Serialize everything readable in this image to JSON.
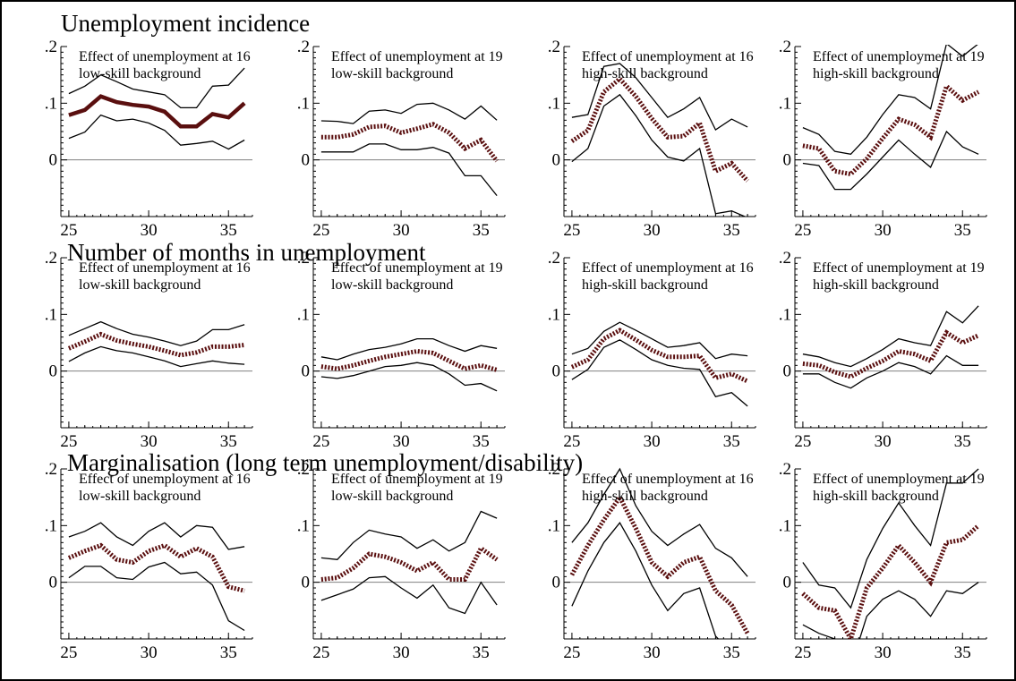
{
  "chart_data": {
    "type": "line",
    "rows": [
      {
        "title": "Unemployment incidence",
        "panels": [
          {
            "label": [
              "Effect of unemployment at 16",
              "low-skill background"
            ],
            "mainStyle": "solid",
            "x": [
              25,
              26,
              27,
              28,
              29,
              30,
              31,
              32,
              33,
              34,
              35,
              36
            ],
            "estimate": [
              0.079,
              0.088,
              0.112,
              0.102,
              0.097,
              0.094,
              0.085,
              0.059,
              0.059,
              0.081,
              0.075,
              0.1
            ],
            "upper": [
              0.117,
              0.13,
              0.15,
              0.138,
              0.125,
              0.12,
              0.115,
              0.092,
              0.092,
              0.13,
              0.132,
              0.162
            ],
            "lower": [
              0.038,
              0.049,
              0.079,
              0.069,
              0.072,
              0.065,
              0.052,
              0.026,
              0.029,
              0.033,
              0.019,
              0.035
            ],
            "ylim": [
              -0.1,
              0.2
            ]
          },
          {
            "label": [
              "Effect of unemployment at 19",
              "low-skill background"
            ],
            "mainStyle": "dotted",
            "x": [
              25,
              26,
              27,
              28,
              29,
              30,
              31,
              32,
              33,
              34,
              35,
              36
            ],
            "estimate": [
              0.04,
              0.04,
              0.045,
              0.058,
              0.06,
              0.048,
              0.055,
              0.063,
              0.048,
              0.02,
              0.035,
              -0.002
            ],
            "upper": [
              0.069,
              0.068,
              0.064,
              0.086,
              0.088,
              0.082,
              0.098,
              0.1,
              0.088,
              0.072,
              0.095,
              0.07
            ],
            "lower": [
              0.014,
              0.014,
              0.014,
              0.028,
              0.028,
              0.018,
              0.018,
              0.022,
              0.012,
              -0.028,
              -0.028,
              -0.063
            ],
            "ylim": [
              -0.1,
              0.2
            ]
          },
          {
            "label": [
              "Effect of unemployment at 16",
              "high-skill background"
            ],
            "mainStyle": "dotted",
            "x": [
              25,
              26,
              27,
              28,
              29,
              30,
              31,
              32,
              33,
              34,
              35,
              36
            ],
            "estimate": [
              0.033,
              0.052,
              0.12,
              0.143,
              0.112,
              0.073,
              0.04,
              0.042,
              0.065,
              -0.02,
              -0.006,
              -0.037
            ],
            "upper": [
              0.075,
              0.08,
              0.165,
              0.17,
              0.145,
              0.11,
              0.075,
              0.09,
              0.11,
              0.053,
              0.072,
              0.058
            ],
            "lower": [
              -0.003,
              0.02,
              0.095,
              0.115,
              0.078,
              0.035,
              0.005,
              -0.002,
              0.02,
              -0.095,
              -0.09,
              -0.102
            ],
            "ylim": [
              -0.1,
              0.2
            ]
          },
          {
            "label": [
              "Effect of unemployment at 19",
              "high-skill background"
            ],
            "mainStyle": "dotted",
            "x": [
              25,
              26,
              27,
              28,
              29,
              30,
              31,
              32,
              33,
              34,
              35,
              36
            ],
            "estimate": [
              0.025,
              0.02,
              -0.02,
              -0.025,
              0.002,
              0.038,
              0.072,
              0.062,
              0.04,
              0.13,
              0.105,
              0.12
            ],
            "upper": [
              0.057,
              0.045,
              0.015,
              0.01,
              0.04,
              0.08,
              0.115,
              0.11,
              0.09,
              0.205,
              0.183,
              0.205
            ],
            "lower": [
              -0.006,
              -0.01,
              -0.052,
              -0.052,
              -0.025,
              0.005,
              0.035,
              0.01,
              -0.013,
              0.05,
              0.023,
              0.01
            ],
            "ylim": [
              -0.1,
              0.2
            ]
          }
        ]
      },
      {
        "title": "Number of months in unemployment",
        "panels": [
          {
            "label": [
              "Effect of unemployment at 16",
              "low-skill background"
            ],
            "mainStyle": "dotted",
            "x": [
              25,
              26,
              27,
              28,
              29,
              30,
              31,
              32,
              33,
              34,
              35,
              36
            ],
            "estimate": [
              0.04,
              0.052,
              0.065,
              0.054,
              0.048,
              0.043,
              0.036,
              0.028,
              0.033,
              0.043,
              0.043,
              0.046
            ],
            "upper": [
              0.063,
              0.075,
              0.087,
              0.075,
              0.065,
              0.06,
              0.053,
              0.045,
              0.053,
              0.073,
              0.073,
              0.082
            ],
            "lower": [
              0.017,
              0.032,
              0.043,
              0.036,
              0.032,
              0.025,
              0.018,
              0.008,
              0.013,
              0.018,
              0.014,
              0.012
            ],
            "ylim": [
              -0.1,
              0.2
            ]
          },
          {
            "label": [
              "Effect of unemployment at 19",
              "low-skill background"
            ],
            "mainStyle": "dotted",
            "x": [
              25,
              26,
              27,
              28,
              29,
              30,
              31,
              32,
              33,
              34,
              35,
              36
            ],
            "estimate": [
              0.008,
              0.004,
              0.01,
              0.018,
              0.025,
              0.03,
              0.035,
              0.032,
              0.018,
              0.004,
              0.01,
              0.002
            ],
            "upper": [
              0.025,
              0.02,
              0.03,
              0.038,
              0.042,
              0.048,
              0.057,
              0.057,
              0.045,
              0.035,
              0.045,
              0.04
            ],
            "lower": [
              -0.01,
              -0.013,
              -0.008,
              0.0,
              0.008,
              0.01,
              0.015,
              0.01,
              -0.005,
              -0.025,
              -0.022,
              -0.035
            ],
            "ylim": [
              -0.1,
              0.2
            ]
          },
          {
            "label": [
              "Effect of unemployment at 16",
              "high-skill background"
            ],
            "mainStyle": "dotted",
            "x": [
              25,
              26,
              27,
              28,
              29,
              30,
              31,
              32,
              33,
              34,
              35,
              36
            ],
            "estimate": [
              0.007,
              0.02,
              0.057,
              0.072,
              0.055,
              0.037,
              0.025,
              0.025,
              0.027,
              -0.012,
              -0.005,
              -0.018
            ],
            "upper": [
              0.03,
              0.04,
              0.07,
              0.086,
              0.072,
              0.057,
              0.042,
              0.045,
              0.05,
              0.022,
              0.03,
              0.027
            ],
            "lower": [
              -0.015,
              0.003,
              0.042,
              0.055,
              0.038,
              0.02,
              0.01,
              0.005,
              0.003,
              -0.045,
              -0.038,
              -0.062
            ],
            "ylim": [
              -0.1,
              0.2
            ]
          },
          {
            "label": [
              "Effect of unemployment at 19",
              "high-skill background"
            ],
            "mainStyle": "dotted",
            "x": [
              25,
              26,
              27,
              28,
              29,
              30,
              31,
              32,
              33,
              34,
              35,
              36
            ],
            "estimate": [
              0.013,
              0.01,
              -0.002,
              -0.01,
              0.005,
              0.018,
              0.035,
              0.03,
              0.018,
              0.068,
              0.05,
              0.063
            ],
            "upper": [
              0.03,
              0.025,
              0.015,
              0.008,
              0.022,
              0.038,
              0.057,
              0.05,
              0.045,
              0.105,
              0.085,
              0.115
            ],
            "lower": [
              -0.005,
              -0.005,
              -0.02,
              -0.03,
              -0.012,
              0.0,
              0.015,
              0.008,
              -0.005,
              0.027,
              0.01,
              0.01
            ],
            "ylim": [
              -0.1,
              0.2
            ]
          }
        ]
      },
      {
        "title": "Marginalisation (long term unemployment/disability)",
        "panels": [
          {
            "label": [
              "Effect of unemployment at 16",
              "low-skill background"
            ],
            "mainStyle": "dotted",
            "x": [
              25,
              26,
              27,
              28,
              29,
              30,
              31,
              32,
              33,
              34,
              35,
              36
            ],
            "estimate": [
              0.043,
              0.055,
              0.065,
              0.04,
              0.035,
              0.055,
              0.065,
              0.045,
              0.06,
              0.045,
              -0.008,
              -0.015
            ],
            "upper": [
              0.08,
              0.09,
              0.105,
              0.08,
              0.065,
              0.09,
              0.105,
              0.08,
              0.1,
              0.097,
              0.058,
              0.063
            ],
            "lower": [
              0.008,
              0.028,
              0.028,
              0.008,
              0.005,
              0.027,
              0.035,
              0.015,
              0.018,
              -0.005,
              -0.068,
              -0.085
            ],
            "ylim": [
              -0.1,
              0.2
            ]
          },
          {
            "label": [
              "Effect of unemployment at 19",
              "low-skill background"
            ],
            "mainStyle": "dotted",
            "x": [
              25,
              26,
              27,
              28,
              29,
              30,
              31,
              32,
              33,
              34,
              35,
              36
            ],
            "estimate": [
              0.005,
              0.008,
              0.025,
              0.05,
              0.045,
              0.035,
              0.02,
              0.035,
              0.005,
              0.005,
              0.06,
              0.04
            ],
            "upper": [
              0.043,
              0.04,
              0.07,
              0.092,
              0.085,
              0.08,
              0.06,
              0.075,
              0.055,
              0.07,
              0.125,
              0.113
            ],
            "lower": [
              -0.032,
              -0.022,
              -0.012,
              0.008,
              0.01,
              -0.01,
              -0.028,
              -0.005,
              -0.045,
              -0.055,
              0.0,
              -0.04
            ],
            "ylim": [
              -0.1,
              0.2
            ]
          },
          {
            "label": [
              "Effect of unemployment at 16",
              "high-skill background"
            ],
            "mainStyle": "dotted",
            "x": [
              25,
              26,
              27,
              28,
              29,
              30,
              31,
              32,
              33,
              34,
              35,
              36
            ],
            "estimate": [
              0.013,
              0.065,
              0.11,
              0.15,
              0.095,
              0.035,
              0.01,
              0.035,
              0.045,
              -0.015,
              -0.04,
              -0.09
            ],
            "upper": [
              0.07,
              0.105,
              0.155,
              0.2,
              0.135,
              0.09,
              0.065,
              0.085,
              0.102,
              0.06,
              0.043,
              0.01
            ],
            "lower": [
              -0.042,
              0.02,
              0.07,
              0.105,
              0.055,
              -0.005,
              -0.05,
              -0.02,
              -0.01,
              -0.095,
              -0.125,
              -0.19
            ],
            "ylim": [
              -0.1,
              0.2
            ]
          },
          {
            "label": [
              "Effect of unemployment at 19",
              "high-skill background"
            ],
            "mainStyle": "dotted",
            "x": [
              25,
              26,
              27,
              28,
              29,
              30,
              31,
              32,
              33,
              34,
              35,
              36
            ],
            "estimate": [
              -0.02,
              -0.045,
              -0.05,
              -0.1,
              -0.01,
              0.025,
              0.065,
              0.035,
              0.0,
              0.07,
              0.075,
              0.1
            ],
            "upper": [
              0.035,
              -0.005,
              -0.01,
              -0.045,
              0.04,
              0.095,
              0.14,
              0.1,
              0.065,
              0.175,
              0.175,
              0.2
            ],
            "lower": [
              -0.075,
              -0.09,
              -0.1,
              -0.15,
              -0.06,
              -0.03,
              -0.015,
              -0.03,
              -0.06,
              -0.015,
              -0.02,
              0.0
            ],
            "ylim": [
              -0.1,
              0.2
            ]
          }
        ]
      }
    ],
    "yticks": [
      {
        "value": 0.2,
        "label": ".2"
      },
      {
        "value": 0.1,
        "label": ".1"
      },
      {
        "value": 0,
        "label": "0"
      }
    ],
    "xticks": [
      25,
      30,
      35
    ],
    "xlim": [
      24.5,
      36.5
    ],
    "colors": {
      "estimate": "#5a0f0f",
      "bands": "#000000",
      "zero": "#808080",
      "axis": "#000000"
    }
  }
}
